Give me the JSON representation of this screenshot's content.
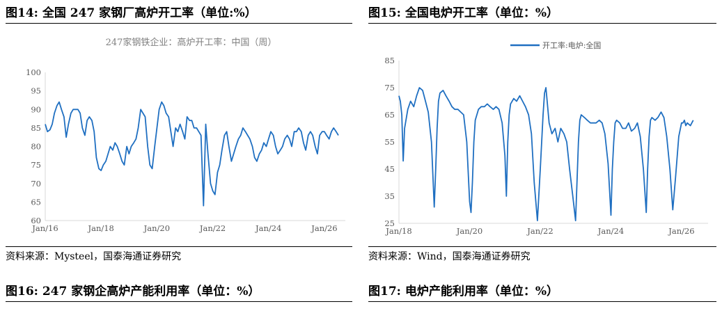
{
  "figures": {
    "fig14": {
      "title": "图14:  全国 247 家钢厂高炉开工率（单位:%）",
      "source": "资料来源：Mysteel，国泰海通证券研究"
    },
    "fig15": {
      "title": "图15:  全国电炉开工率（单位：%）",
      "source": "资料来源：Wind，国泰海通证券研究"
    },
    "fig16": {
      "title": "图16:  247 家钢企高炉产能利用率（单位：%）"
    },
    "fig17": {
      "title": "图17:  电炉产能利用率（单位：%）"
    }
  },
  "chart_data": [
    {
      "id": "blast-furnace-rate",
      "type": "line",
      "title": "247家钢铁企业：高炉开工率：中国（周）",
      "ylim": [
        60,
        100
      ],
      "yticks": [
        60,
        65,
        70,
        75,
        80,
        85,
        90,
        95,
        100
      ],
      "xlim": [
        2016.0,
        2026.75
      ],
      "xticks": [
        {
          "x": 2016.0,
          "label": "Jan/16"
        },
        {
          "x": 2018.0,
          "label": "Jan/18"
        },
        {
          "x": 2020.0,
          "label": "Jan/20"
        },
        {
          "x": 2022.0,
          "label": "Jan/22"
        },
        {
          "x": 2024.0,
          "label": "Jan/24"
        },
        {
          "x": 2026.0,
          "label": "Jan/26"
        }
      ],
      "color": "#1f6fc1",
      "series": [
        {
          "x": [
            2016.0,
            2016.08,
            2016.17,
            2016.25,
            2016.33,
            2016.42,
            2016.5,
            2016.58,
            2016.67,
            2016.75,
            2016.83,
            2016.92,
            2017.0,
            2017.08,
            2017.17,
            2017.25,
            2017.33,
            2017.42,
            2017.5,
            2017.58,
            2017.67,
            2017.75,
            2017.83,
            2017.92,
            2018.0,
            2018.08,
            2018.17,
            2018.25,
            2018.33,
            2018.42,
            2018.5,
            2018.58,
            2018.67,
            2018.75,
            2018.83,
            2018.92,
            2019.0,
            2019.08,
            2019.17,
            2019.25,
            2019.33,
            2019.42,
            2019.5,
            2019.58,
            2019.67,
            2019.75,
            2019.83,
            2019.92,
            2020.0,
            2020.08,
            2020.17,
            2020.25,
            2020.33,
            2020.42,
            2020.5,
            2020.58,
            2020.67,
            2020.75,
            2020.83,
            2020.92,
            2021.0,
            2021.08,
            2021.17,
            2021.25,
            2021.33,
            2021.42,
            2021.5,
            2021.58,
            2021.67,
            2021.75,
            2021.83,
            2021.92,
            2022.0,
            2022.08,
            2022.17,
            2022.25,
            2022.33,
            2022.42,
            2022.5,
            2022.58,
            2022.67,
            2022.75,
            2022.83,
            2022.92,
            2023.0,
            2023.08,
            2023.17,
            2023.25,
            2023.33,
            2023.42,
            2023.5,
            2023.58,
            2023.67,
            2023.75,
            2023.83,
            2023.92,
            2024.0,
            2024.08,
            2024.17,
            2024.25,
            2024.33,
            2024.42,
            2024.5,
            2024.58,
            2024.67,
            2024.75,
            2024.83,
            2024.92,
            2025.0,
            2025.08,
            2025.17,
            2025.25,
            2025.33,
            2025.42,
            2025.5,
            2025.58,
            2025.67,
            2025.75,
            2025.83,
            2025.92,
            2026.0,
            2026.08,
            2026.17,
            2026.25,
            2026.33,
            2026.42,
            2026.5
          ],
          "y": [
            86,
            84,
            84.5,
            86,
            89,
            91,
            92,
            90,
            88,
            82.5,
            86,
            89,
            90,
            90,
            90,
            89,
            85,
            83,
            87,
            88,
            87,
            84,
            77,
            74,
            73.5,
            75,
            76,
            78,
            80,
            79,
            81,
            80,
            78,
            76,
            75,
            80,
            78,
            80,
            81,
            82,
            85,
            90,
            89,
            88,
            80,
            75,
            74,
            80,
            85,
            90,
            92,
            91,
            89,
            88,
            84,
            80,
            85,
            84,
            86,
            84,
            82,
            88,
            87,
            87,
            85,
            85,
            84,
            83,
            64,
            86,
            78,
            70,
            68,
            67,
            73,
            75,
            79,
            83,
            84,
            80,
            76,
            78,
            80,
            82,
            83,
            85,
            84,
            83,
            82,
            80,
            77,
            76,
            78,
            79,
            81,
            80,
            82,
            84,
            83,
            80,
            78,
            79,
            80,
            82,
            83,
            82,
            80,
            84,
            84,
            85,
            84,
            81,
            79,
            83,
            84,
            83,
            80,
            78,
            83,
            84,
            84,
            83,
            82,
            84,
            85,
            84,
            83
          ]
        }
      ]
    },
    {
      "id": "electric-furnace-rate",
      "type": "line",
      "ylim": [
        25,
        85
      ],
      "yticks": [
        25,
        35,
        45,
        55,
        65,
        75,
        85
      ],
      "xlim": [
        2018.0,
        2026.75
      ],
      "xticks": [
        {
          "x": 2018.0,
          "label": "Jan/18"
        },
        {
          "x": 2020.0,
          "label": "Jan/20"
        },
        {
          "x": 2022.0,
          "label": "Jan/22"
        },
        {
          "x": 2024.0,
          "label": "Jan/24"
        },
        {
          "x": 2026.0,
          "label": "Jan/26"
        }
      ],
      "legend": "top",
      "color": "#1f6fc1",
      "series": [
        {
          "name": "开工率:电炉:全国",
          "x": [
            2018.0,
            2018.04,
            2018.08,
            2018.12,
            2018.16,
            2018.25,
            2018.33,
            2018.42,
            2018.5,
            2018.58,
            2018.67,
            2018.75,
            2018.83,
            2018.92,
            2019.0,
            2019.04,
            2019.08,
            2019.12,
            2019.16,
            2019.25,
            2019.33,
            2019.42,
            2019.5,
            2019.58,
            2019.67,
            2019.75,
            2019.83,
            2019.92,
            2020.0,
            2020.04,
            2020.08,
            2020.12,
            2020.16,
            2020.25,
            2020.33,
            2020.42,
            2020.5,
            2020.58,
            2020.67,
            2020.75,
            2020.83,
            2020.92,
            2021.0,
            2021.04,
            2021.08,
            2021.12,
            2021.16,
            2021.25,
            2021.33,
            2021.42,
            2021.5,
            2021.58,
            2021.67,
            2021.75,
            2021.83,
            2021.92,
            2022.0,
            2022.04,
            2022.08,
            2022.12,
            2022.16,
            2022.25,
            2022.33,
            2022.42,
            2022.5,
            2022.58,
            2022.67,
            2022.75,
            2022.83,
            2022.92,
            2023.0,
            2023.04,
            2023.08,
            2023.12,
            2023.16,
            2023.25,
            2023.33,
            2023.42,
            2023.5,
            2023.58,
            2023.67,
            2023.75,
            2023.83,
            2023.92,
            2024.0,
            2024.04,
            2024.08,
            2024.12,
            2024.16,
            2024.25,
            2024.33,
            2024.42,
            2024.5,
            2024.58,
            2024.67,
            2024.75,
            2024.83,
            2024.92,
            2025.0,
            2025.04,
            2025.08,
            2025.12,
            2025.16,
            2025.25,
            2025.33,
            2025.42,
            2025.5,
            2025.58,
            2025.67,
            2025.75,
            2025.83,
            2025.92,
            2026.0,
            2026.04,
            2026.08,
            2026.12,
            2026.16,
            2026.25,
            2026.33
          ],
          "y": [
            72,
            70,
            65,
            48,
            60,
            67,
            70,
            68,
            72,
            75,
            74,
            70,
            66,
            55,
            31,
            45,
            60,
            70,
            73,
            74,
            72,
            70,
            68,
            67,
            67,
            66,
            65,
            55,
            33,
            29,
            40,
            55,
            63,
            67,
            68,
            68,
            69,
            68,
            67,
            68,
            67,
            62,
            50,
            35,
            55,
            65,
            69,
            71,
            70,
            72,
            70,
            68,
            65,
            58,
            40,
            26,
            45,
            55,
            65,
            73,
            75,
            62,
            58,
            60,
            55,
            60,
            58,
            55,
            45,
            35,
            26,
            40,
            55,
            63,
            65,
            64,
            63,
            62,
            62,
            62,
            63,
            62,
            58,
            47,
            28,
            45,
            55,
            62,
            63,
            62,
            60,
            60,
            62,
            59,
            60,
            62,
            57,
            45,
            29,
            45,
            57,
            63,
            64,
            63,
            64,
            66,
            64,
            57,
            45,
            30,
            42,
            57,
            62,
            62,
            63,
            61,
            62,
            61,
            63
          ]
        }
      ]
    }
  ]
}
